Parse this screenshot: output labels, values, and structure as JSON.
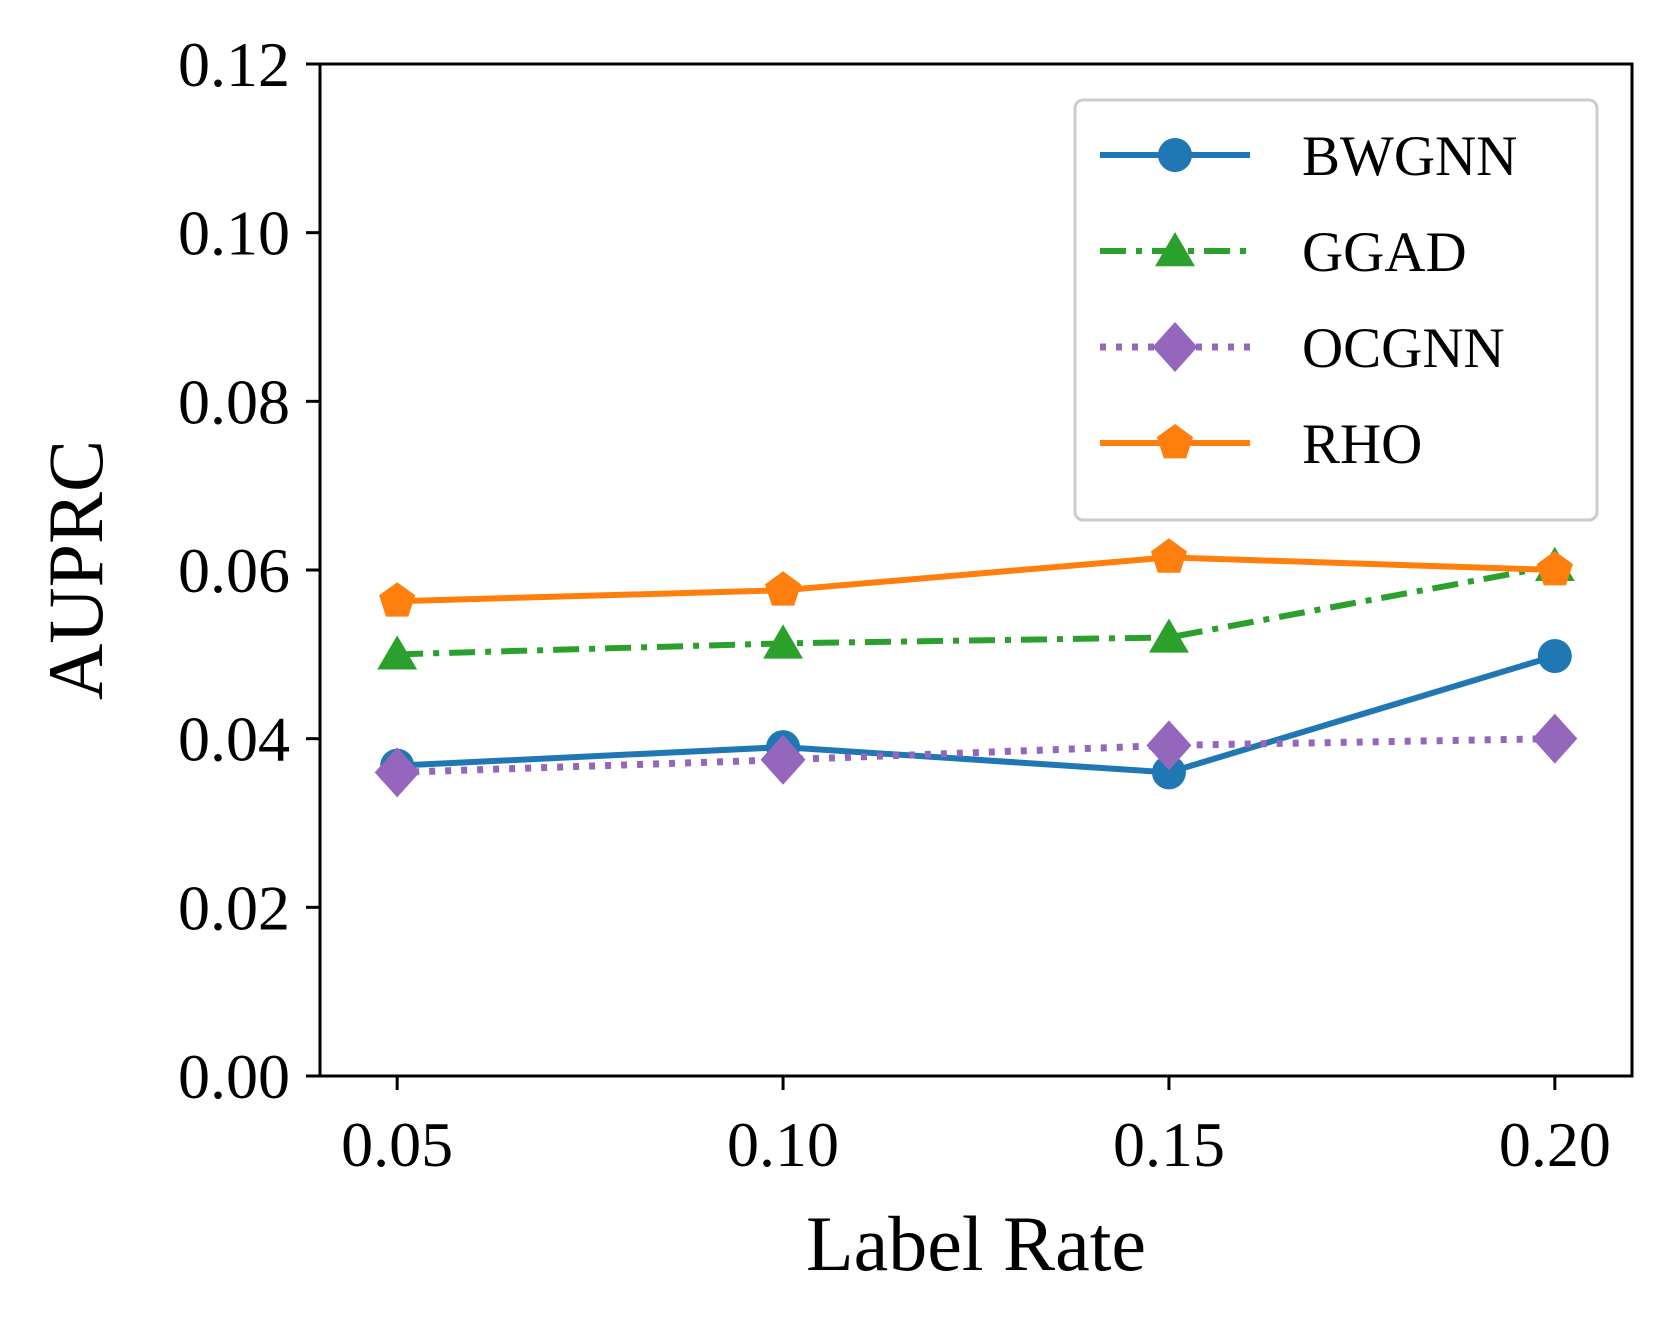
{
  "chart_data": {
    "type": "line",
    "title": "",
    "xlabel": "Label Rate",
    "ylabel": "AUPRC",
    "x": [
      0.05,
      0.1,
      0.15,
      0.2
    ],
    "x_tick_labels": [
      "0.05",
      "0.10",
      "0.15",
      "0.20"
    ],
    "y_tick_labels": [
      "0.00",
      "0.02",
      "0.04",
      "0.06",
      "0.08",
      "0.10",
      "0.12"
    ],
    "ylim": [
      0,
      0.12
    ],
    "xlim": [
      0.04,
      0.21
    ],
    "grid": false,
    "legend_position": "top-right",
    "series": [
      {
        "name": "BWGNN",
        "values": [
          0.0368,
          0.039,
          0.036,
          0.0498
        ],
        "color": "#1f77b4",
        "line_style": "solid",
        "marker": "circle"
      },
      {
        "name": "GGAD",
        "values": [
          0.05,
          0.0513,
          0.052,
          0.0605
        ],
        "color": "#2ca02c",
        "line_style": "dashdot",
        "marker": "triangle"
      },
      {
        "name": "OCGNN",
        "values": [
          0.036,
          0.0375,
          0.0392,
          0.04
        ],
        "color": "#9467bd",
        "line_style": "dotted",
        "marker": "diamond"
      },
      {
        "name": "RHO",
        "values": [
          0.0563,
          0.0576,
          0.0615,
          0.06
        ],
        "color": "#ff7f0e",
        "line_style": "solid",
        "marker": "pentagon"
      }
    ]
  }
}
